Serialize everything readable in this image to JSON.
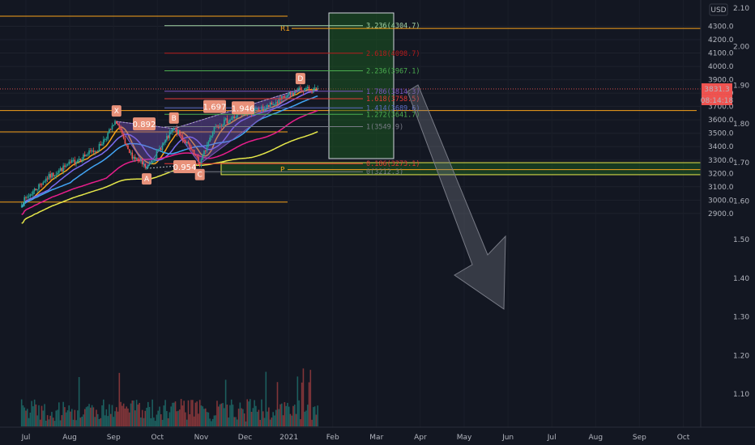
{
  "chart_data": {
    "type": "candlestick",
    "currency_label": "USD",
    "y_axis_left_ticks": [
      2900,
      3000,
      3100,
      3200,
      3300,
      3400,
      3500,
      3600,
      3700,
      3800,
      3900,
      4000,
      4100,
      4200,
      4300
    ],
    "y_axis_right_ticks": [
      "1.10",
      "1.20",
      "1.30",
      "1.40",
      "1.50",
      "1.60",
      "1.70",
      "1.80",
      "1.90",
      "2.00",
      "2.10"
    ],
    "x_ticks": [
      "Jul",
      "Aug",
      "Sep",
      "Oct",
      "Nov",
      "Dec",
      "2021",
      "Feb",
      "Mar",
      "Apr",
      "May",
      "Jun",
      "Jul",
      "Aug",
      "Sep",
      "Oct"
    ],
    "price_badge": "3831.3",
    "countdown_badge": "08:14:18",
    "ylim": [
      2890,
      4330
    ],
    "harmonic_points": [
      {
        "label": "X",
        "date": "2020-09-02",
        "price": 3588
      },
      {
        "label": "A",
        "date": "2020-09-23",
        "price": 3237
      },
      {
        "label": "B",
        "date": "2020-10-12",
        "price": 3535
      },
      {
        "label": "C",
        "date": "2020-10-30",
        "price": 3270
      },
      {
        "label": "D",
        "date": "2021-01-08",
        "price": 3830
      }
    ],
    "ratios": [
      "0.892",
      "0.954",
      "1.697",
      "1.946"
    ],
    "fib_levels": [
      {
        "ratio": "3.236",
        "price": 4304.7,
        "text": "3.236(4304.7)",
        "color": "#a5d6a7"
      },
      {
        "ratio": "2.618",
        "price": 4098.7,
        "text": "2.618(4098.7)",
        "color": "#b71c1c"
      },
      {
        "ratio": "2.236",
        "price": 3967.1,
        "text": "2.236(3967.1)",
        "color": "#4caf50"
      },
      {
        "ratio": "1.786",
        "price": 3814.3,
        "text": "1.786(3814.3)",
        "color": "#7e57c2"
      },
      {
        "ratio": "1.618",
        "price": 3758.5,
        "text": "1.618(3758.5)",
        "color": "#e53935"
      },
      {
        "ratio": "1.414",
        "price": 3689.6,
        "text": "1.414(3689.6)",
        "color": "#5c6bc0"
      },
      {
        "ratio": "1.272",
        "price": 3641.7,
        "text": "1.272(3641.7)",
        "color": "#4caf50"
      },
      {
        "ratio": "1",
        "price": 3549.9,
        "text": "1(3549.9)",
        "color": "#787b86"
      },
      {
        "ratio": "0.186",
        "price": 3273.1,
        "text": "0.186(3273.1)",
        "color": "#e53935"
      },
      {
        "ratio": "0",
        "price": 3212.3,
        "text": "0(3212.3)",
        "color": "#787b86"
      }
    ],
    "labels": {
      "r1": "R1",
      "p": "P"
    }
  }
}
